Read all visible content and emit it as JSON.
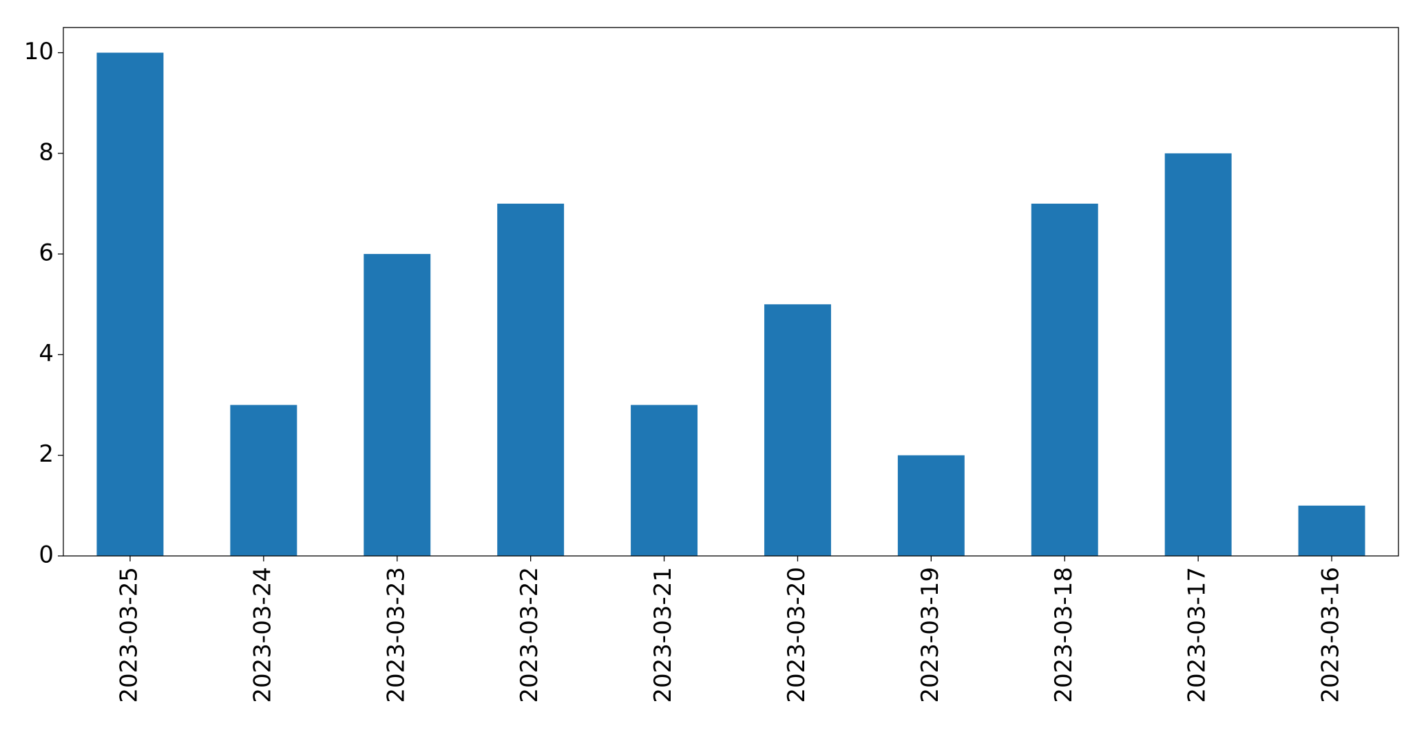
{
  "chart_data": {
    "type": "bar",
    "categories": [
      "2023-03-25",
      "2023-03-24",
      "2023-03-23",
      "2023-03-22",
      "2023-03-21",
      "2023-03-20",
      "2023-03-19",
      "2023-03-18",
      "2023-03-17",
      "2023-03-16"
    ],
    "values": [
      10,
      3,
      6,
      7,
      3,
      5,
      2,
      7,
      8,
      1
    ],
    "color": "#1f77b4",
    "ylim": [
      0,
      10.5
    ],
    "yticks": [
      0,
      2,
      4,
      6,
      8,
      10
    ],
    "grid": false
  }
}
